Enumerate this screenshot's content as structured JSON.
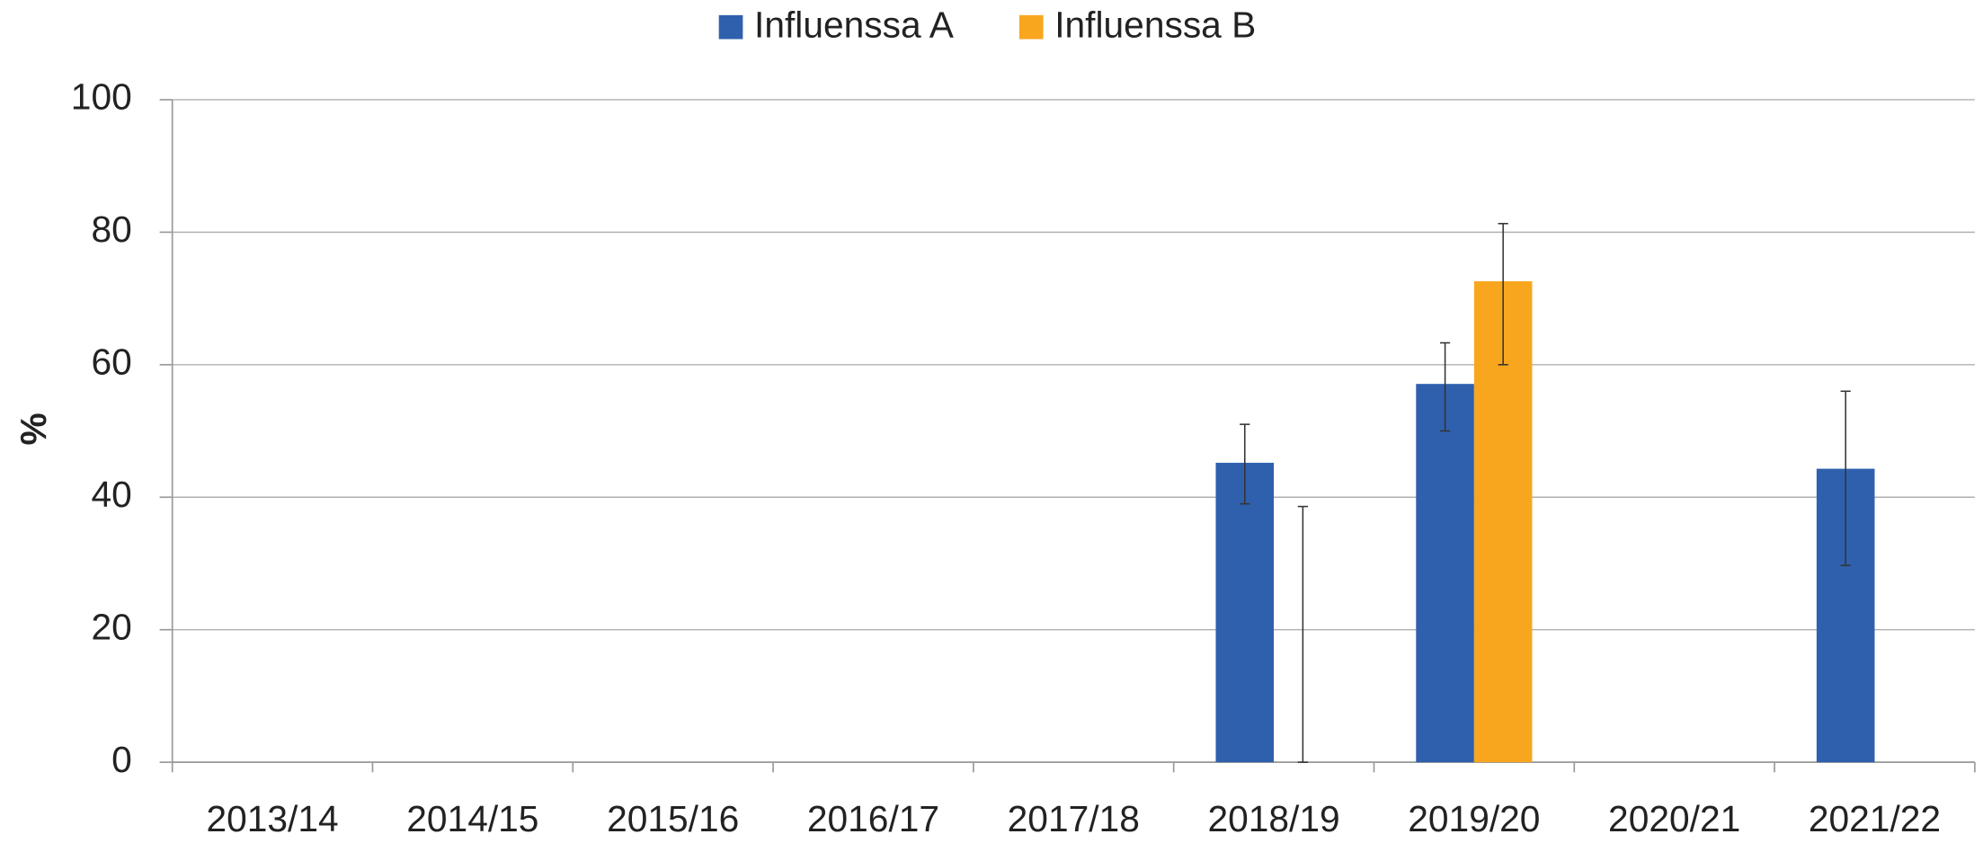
{
  "chart_data": {
    "type": "bar",
    "y_label": "%",
    "categories": [
      "2013/14",
      "2014/15",
      "2015/16",
      "2016/17",
      "2017/18",
      "2018/19",
      "2019/20",
      "2020/21",
      "2021/22"
    ],
    "series": [
      {
        "name": "Influenssa A",
        "color": "#2f60ae",
        "values": [
          null,
          null,
          null,
          null,
          null,
          45.2,
          57.1,
          null,
          44.3
        ],
        "ci_low": [
          null,
          null,
          null,
          null,
          null,
          39,
          50,
          null,
          29.7
        ],
        "ci_high": [
          null,
          null,
          null,
          null,
          null,
          51,
          63.3,
          null,
          56
        ]
      },
      {
        "name": "Influenssa B",
        "color": "#f9a61f",
        "values": [
          null,
          null,
          null,
          null,
          null,
          0,
          72.6,
          null,
          null
        ],
        "ci_low": [
          null,
          null,
          null,
          null,
          null,
          0,
          60,
          null,
          null
        ],
        "ci_high": [
          null,
          null,
          null,
          null,
          null,
          38.6,
          81.3,
          null,
          null
        ]
      }
    ],
    "ylim": [
      0,
      100
    ],
    "yticks": [
      0,
      20,
      40,
      60,
      80,
      100
    ],
    "grid": true,
    "legend": "top"
  }
}
